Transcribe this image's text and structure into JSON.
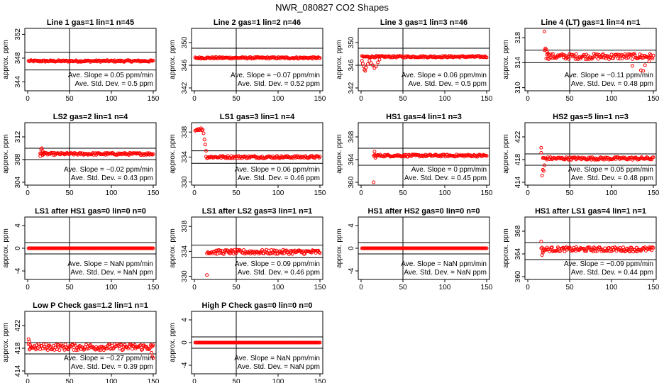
{
  "figure_title": "NWR_080827  CO2 Shapes",
  "colors": {
    "points": "#ff0000",
    "lines": "#000000"
  },
  "chart_data": [
    {
      "type": "scatter",
      "title": "Line 1 gas=1 lin=1 n=45",
      "ylabel": "approx. ppm",
      "xlim": [
        0,
        150
      ],
      "xticks": [
        0,
        50,
        100,
        150
      ],
      "ylim": [
        342.5,
        353
      ],
      "yticks": [
        344,
        348,
        352
      ],
      "hlines": [
        346,
        349
      ],
      "vline": 50,
      "slope_value": "0.05",
      "sd_value": "0.5",
      "segments": [
        {
          "x0": 1,
          "x1": 150,
          "base": 347.5,
          "noise": 0.15,
          "step": 1
        }
      ],
      "extra_points": []
    },
    {
      "type": "scatter",
      "title": "Line 2 gas=1 lin=2 n=46",
      "ylabel": "approx. ppm",
      "xlim": [
        0,
        150
      ],
      "xticks": [
        0,
        50,
        100,
        150
      ],
      "ylim": [
        341.5,
        352.5
      ],
      "yticks": [
        342,
        346,
        350
      ],
      "hlines": [
        346,
        349
      ],
      "vline": 50,
      "slope_value": "−0.07",
      "sd_value": "0.52",
      "segments": [
        {
          "x0": 1,
          "x1": 150,
          "base": 347.3,
          "noise": 0.15,
          "step": 1
        }
      ],
      "extra_points": []
    },
    {
      "type": "scatter",
      "title": "Line 3 gas=1 lin=3 n=46",
      "ylabel": "approx. ppm",
      "xlim": [
        0,
        150
      ],
      "xticks": [
        0,
        50,
        100,
        150
      ],
      "ylim": [
        341.5,
        352.5
      ],
      "yticks": [
        342,
        346,
        350
      ],
      "hlines": [
        346,
        349
      ],
      "vline": 50,
      "slope_value": "0.06",
      "sd_value": "0.5",
      "segments": [
        {
          "x0": 1,
          "x1": 150,
          "base": 347.5,
          "noise": 0.15,
          "step": 1
        }
      ],
      "extra_points": [
        [
          1,
          346.8
        ],
        [
          2,
          346.3
        ],
        [
          3,
          345.8
        ],
        [
          4,
          345.2
        ],
        [
          5,
          345.0
        ],
        [
          6,
          345.6
        ],
        [
          8,
          346.2
        ],
        [
          10,
          346.8
        ],
        [
          12,
          346.4
        ],
        [
          14,
          346.0
        ],
        [
          16,
          345.5
        ],
        [
          18,
          345.8
        ],
        [
          20,
          346.5
        ],
        [
          22,
          347.0
        ]
      ]
    },
    {
      "type": "scatter",
      "title": "Line 4 (LT) gas=1 lin=4 n=1",
      "ylabel": "approx. ppm",
      "xlim": [
        0,
        150
      ],
      "xticks": [
        0,
        50,
        100,
        150
      ],
      "ylim": [
        309.5,
        319.5
      ],
      "yticks": [
        310,
        314,
        318
      ],
      "hlines": [
        314,
        316
      ],
      "vline": 50,
      "slope_value": "−0.11",
      "sd_value": "0.48",
      "segments": [
        {
          "x0": 22,
          "x1": 150,
          "base": 315,
          "noise": 0.45,
          "step": 1
        }
      ],
      "extra_points": [
        [
          20,
          319
        ],
        [
          20,
          316
        ],
        [
          21,
          316.3
        ],
        [
          22,
          316.1
        ],
        [
          23,
          315.8
        ],
        [
          24,
          315.5
        ],
        [
          25,
          315.3
        ],
        [
          125,
          313.5
        ],
        [
          135,
          312.8
        ],
        [
          138,
          312.7
        ],
        [
          140,
          313.6
        ],
        [
          145,
          314.2
        ]
      ]
    },
    {
      "type": "scatter",
      "title": "LS2 gas=2 lin=1 n=4",
      "ylabel": "approx. ppm",
      "xlim": [
        0,
        150
      ],
      "xticks": [
        0,
        50,
        100,
        150
      ],
      "ylim": [
        303.5,
        314.5
      ],
      "yticks": [
        304,
        308,
        312
      ],
      "hlines": [
        308,
        310
      ],
      "vline": 50,
      "slope_value": "−0.02",
      "sd_value": "0.43",
      "segments": [
        {
          "x0": 15,
          "x1": 150,
          "base": 309,
          "noise": 0.2,
          "step": 1
        }
      ],
      "extra_points": [
        [
          15,
          308.6
        ],
        [
          16,
          309.8
        ],
        [
          17,
          310.0
        ],
        [
          18,
          309.5
        ],
        [
          19,
          309.2
        ]
      ]
    },
    {
      "type": "scatter",
      "title": "LS1 gas=3 lin=1 n=4",
      "ylabel": "approx. ppm",
      "xlim": [
        0,
        150
      ],
      "xticks": [
        0,
        50,
        100,
        150
      ],
      "ylim": [
        329.5,
        339.5
      ],
      "yticks": [
        330,
        334,
        338
      ],
      "hlines": [
        333,
        335
      ],
      "vline": 50,
      "slope_value": "0.06",
      "sd_value": "0.46",
      "segments": [
        {
          "x0": 14,
          "x1": 150,
          "base": 334,
          "noise": 0.2,
          "step": 1
        }
      ],
      "extra_points": [
        [
          1,
          338.2
        ],
        [
          2,
          338.3
        ],
        [
          3,
          338.4
        ],
        [
          4,
          338.3
        ],
        [
          5,
          338.5
        ],
        [
          6,
          338.3
        ],
        [
          7,
          338.4
        ],
        [
          8,
          338.6
        ],
        [
          9,
          338.3
        ],
        [
          10,
          338.4
        ],
        [
          11,
          337.8
        ],
        [
          12,
          336.8
        ],
        [
          13,
          336.0
        ],
        [
          14,
          335.0
        ]
      ]
    },
    {
      "type": "scatter",
      "title": "HS1 gas=4 lin=1 n=3",
      "ylabel": "approx. ppm",
      "xlim": [
        0,
        150
      ],
      "xticks": [
        0,
        50,
        100,
        150
      ],
      "ylim": [
        359.5,
        370.5
      ],
      "yticks": [
        360,
        364,
        368
      ],
      "hlines": [
        363,
        366
      ],
      "vline": 50,
      "slope_value": "0",
      "sd_value": "0.45",
      "segments": [
        {
          "x0": 15,
          "x1": 150,
          "base": 364.7,
          "noise": 0.2,
          "step": 1
        }
      ],
      "extra_points": [
        [
          15,
          360
        ],
        [
          16,
          365.4
        ],
        [
          17,
          364.3
        ]
      ]
    },
    {
      "type": "scatter",
      "title": "HS2 gas=5 lin=1 n=3",
      "ylabel": "approx. ppm",
      "xlim": [
        0,
        150
      ],
      "xticks": [
        0,
        50,
        100,
        150
      ],
      "ylim": [
        413.5,
        424.5
      ],
      "yticks": [
        414,
        418,
        422
      ],
      "hlines": [
        417,
        419
      ],
      "vline": 50,
      "slope_value": "0.05",
      "sd_value": "0.48",
      "segments": [
        {
          "x0": 18,
          "x1": 150,
          "base": 418.2,
          "noise": 0.25,
          "step": 1
        }
      ],
      "extra_points": [
        [
          16,
          420.1
        ],
        [
          16,
          419.2
        ],
        [
          17,
          415.2
        ],
        [
          18,
          416.2
        ],
        [
          19,
          416.0
        ],
        [
          20,
          417.0
        ]
      ]
    },
    {
      "type": "scatter",
      "title": "LS1 after HS1 gas=0 lin=0 n=0",
      "ylabel": "approx. ppm",
      "xlim": [
        0,
        150
      ],
      "xticks": [
        0,
        50,
        100,
        150
      ],
      "ylim": [
        -5.5,
        5.5
      ],
      "yticks": [
        -4,
        0,
        4
      ],
      "hlines": [
        -1,
        1
      ],
      "vline": 50,
      "slope_value": "NaN",
      "sd_value": "NaN",
      "segments": [
        {
          "x0": 1,
          "x1": 150,
          "base": 0,
          "noise": 0,
          "step": 1
        }
      ],
      "extra_points": []
    },
    {
      "type": "scatter",
      "title": "LS1 after LS2 gas=3 lin=1 n=1",
      "ylabel": "approx. ppm",
      "xlim": [
        0,
        150
      ],
      "xticks": [
        0,
        50,
        100,
        150
      ],
      "ylim": [
        329.5,
        339.5
      ],
      "yticks": [
        330,
        334,
        338
      ],
      "hlines": [
        333,
        335
      ],
      "vline": 50,
      "slope_value": "0.09",
      "sd_value": "0.46",
      "segments": [
        {
          "x0": 15,
          "x1": 150,
          "base": 333.9,
          "noise": 0.35,
          "step": 1
        }
      ],
      "extra_points": [
        [
          15,
          330.2
        ]
      ]
    },
    {
      "type": "scatter",
      "title": "HS1 after HS2 gas=0 lin=0 n=0",
      "ylabel": "approx. ppm",
      "xlim": [
        0,
        150
      ],
      "xticks": [
        0,
        50,
        100,
        150
      ],
      "ylim": [
        -5.5,
        5.5
      ],
      "yticks": [
        -4,
        0,
        4
      ],
      "hlines": [
        -1,
        1
      ],
      "vline": 50,
      "slope_value": "NaN",
      "sd_value": "NaN",
      "segments": [
        {
          "x0": 1,
          "x1": 150,
          "base": 0,
          "noise": 0,
          "step": 1
        }
      ],
      "extra_points": []
    },
    {
      "type": "scatter",
      "title": "HS1 after LS1 gas=4 lin=1 n=1",
      "ylabel": "approx. ppm",
      "xlim": [
        0,
        150
      ],
      "xticks": [
        0,
        50,
        100,
        150
      ],
      "ylim": [
        359.5,
        370.5
      ],
      "yticks": [
        360,
        364,
        368
      ],
      "hlines": [
        363,
        366
      ],
      "vline": 50,
      "slope_value": "−0.09",
      "sd_value": "0.44",
      "segments": [
        {
          "x0": 16,
          "x1": 150,
          "base": 364.8,
          "noise": 0.4,
          "step": 1
        }
      ],
      "extra_points": [
        [
          16,
          366.2
        ],
        [
          17,
          363.8
        ],
        [
          18,
          364.2
        ]
      ]
    },
    {
      "type": "scatter",
      "title": "Low P Check gas=1.2 lin=1 n=1",
      "ylabel": "approx. ppm",
      "xlim": [
        0,
        150
      ],
      "xticks": [
        0,
        50,
        100,
        150
      ],
      "ylim": [
        413.5,
        424.5
      ],
      "yticks": [
        414,
        418,
        422
      ],
      "hlines": [
        417,
        419
      ],
      "vline": 50,
      "slope_value": "−0.27",
      "sd_value": "0.39",
      "segments": [
        {
          "x0": 1,
          "x1": 150,
          "base": 418.2,
          "noise": 0.55,
          "step": 1
        }
      ],
      "extra_points": [
        [
          1,
          419.6
        ],
        [
          2,
          419.2
        ],
        [
          3,
          418.6
        ],
        [
          148,
          417.2
        ],
        [
          149,
          416.5
        ],
        [
          150,
          416.3
        ]
      ]
    },
    {
      "type": "scatter",
      "title": "High P Check gas=0 lin=0 n=0",
      "ylabel": "approx. ppm",
      "xlim": [
        0,
        150
      ],
      "xticks": [
        0,
        50,
        100,
        150
      ],
      "ylim": [
        -5.5,
        5.5
      ],
      "yticks": [
        -4,
        0,
        4
      ],
      "hlines": [
        -1,
        1
      ],
      "vline": 50,
      "slope_value": "NaN",
      "sd_value": "NaN",
      "segments": [
        {
          "x0": 1,
          "x1": 150,
          "base": 0,
          "noise": 0,
          "step": 1
        }
      ],
      "extra_points": []
    }
  ],
  "stats_labels": {
    "slope_prefix": "Ave. Slope = ",
    "slope_unit": " ppm/min",
    "sd_prefix": "Ave. Std. Dev. = ",
    "sd_unit": " ppm"
  }
}
